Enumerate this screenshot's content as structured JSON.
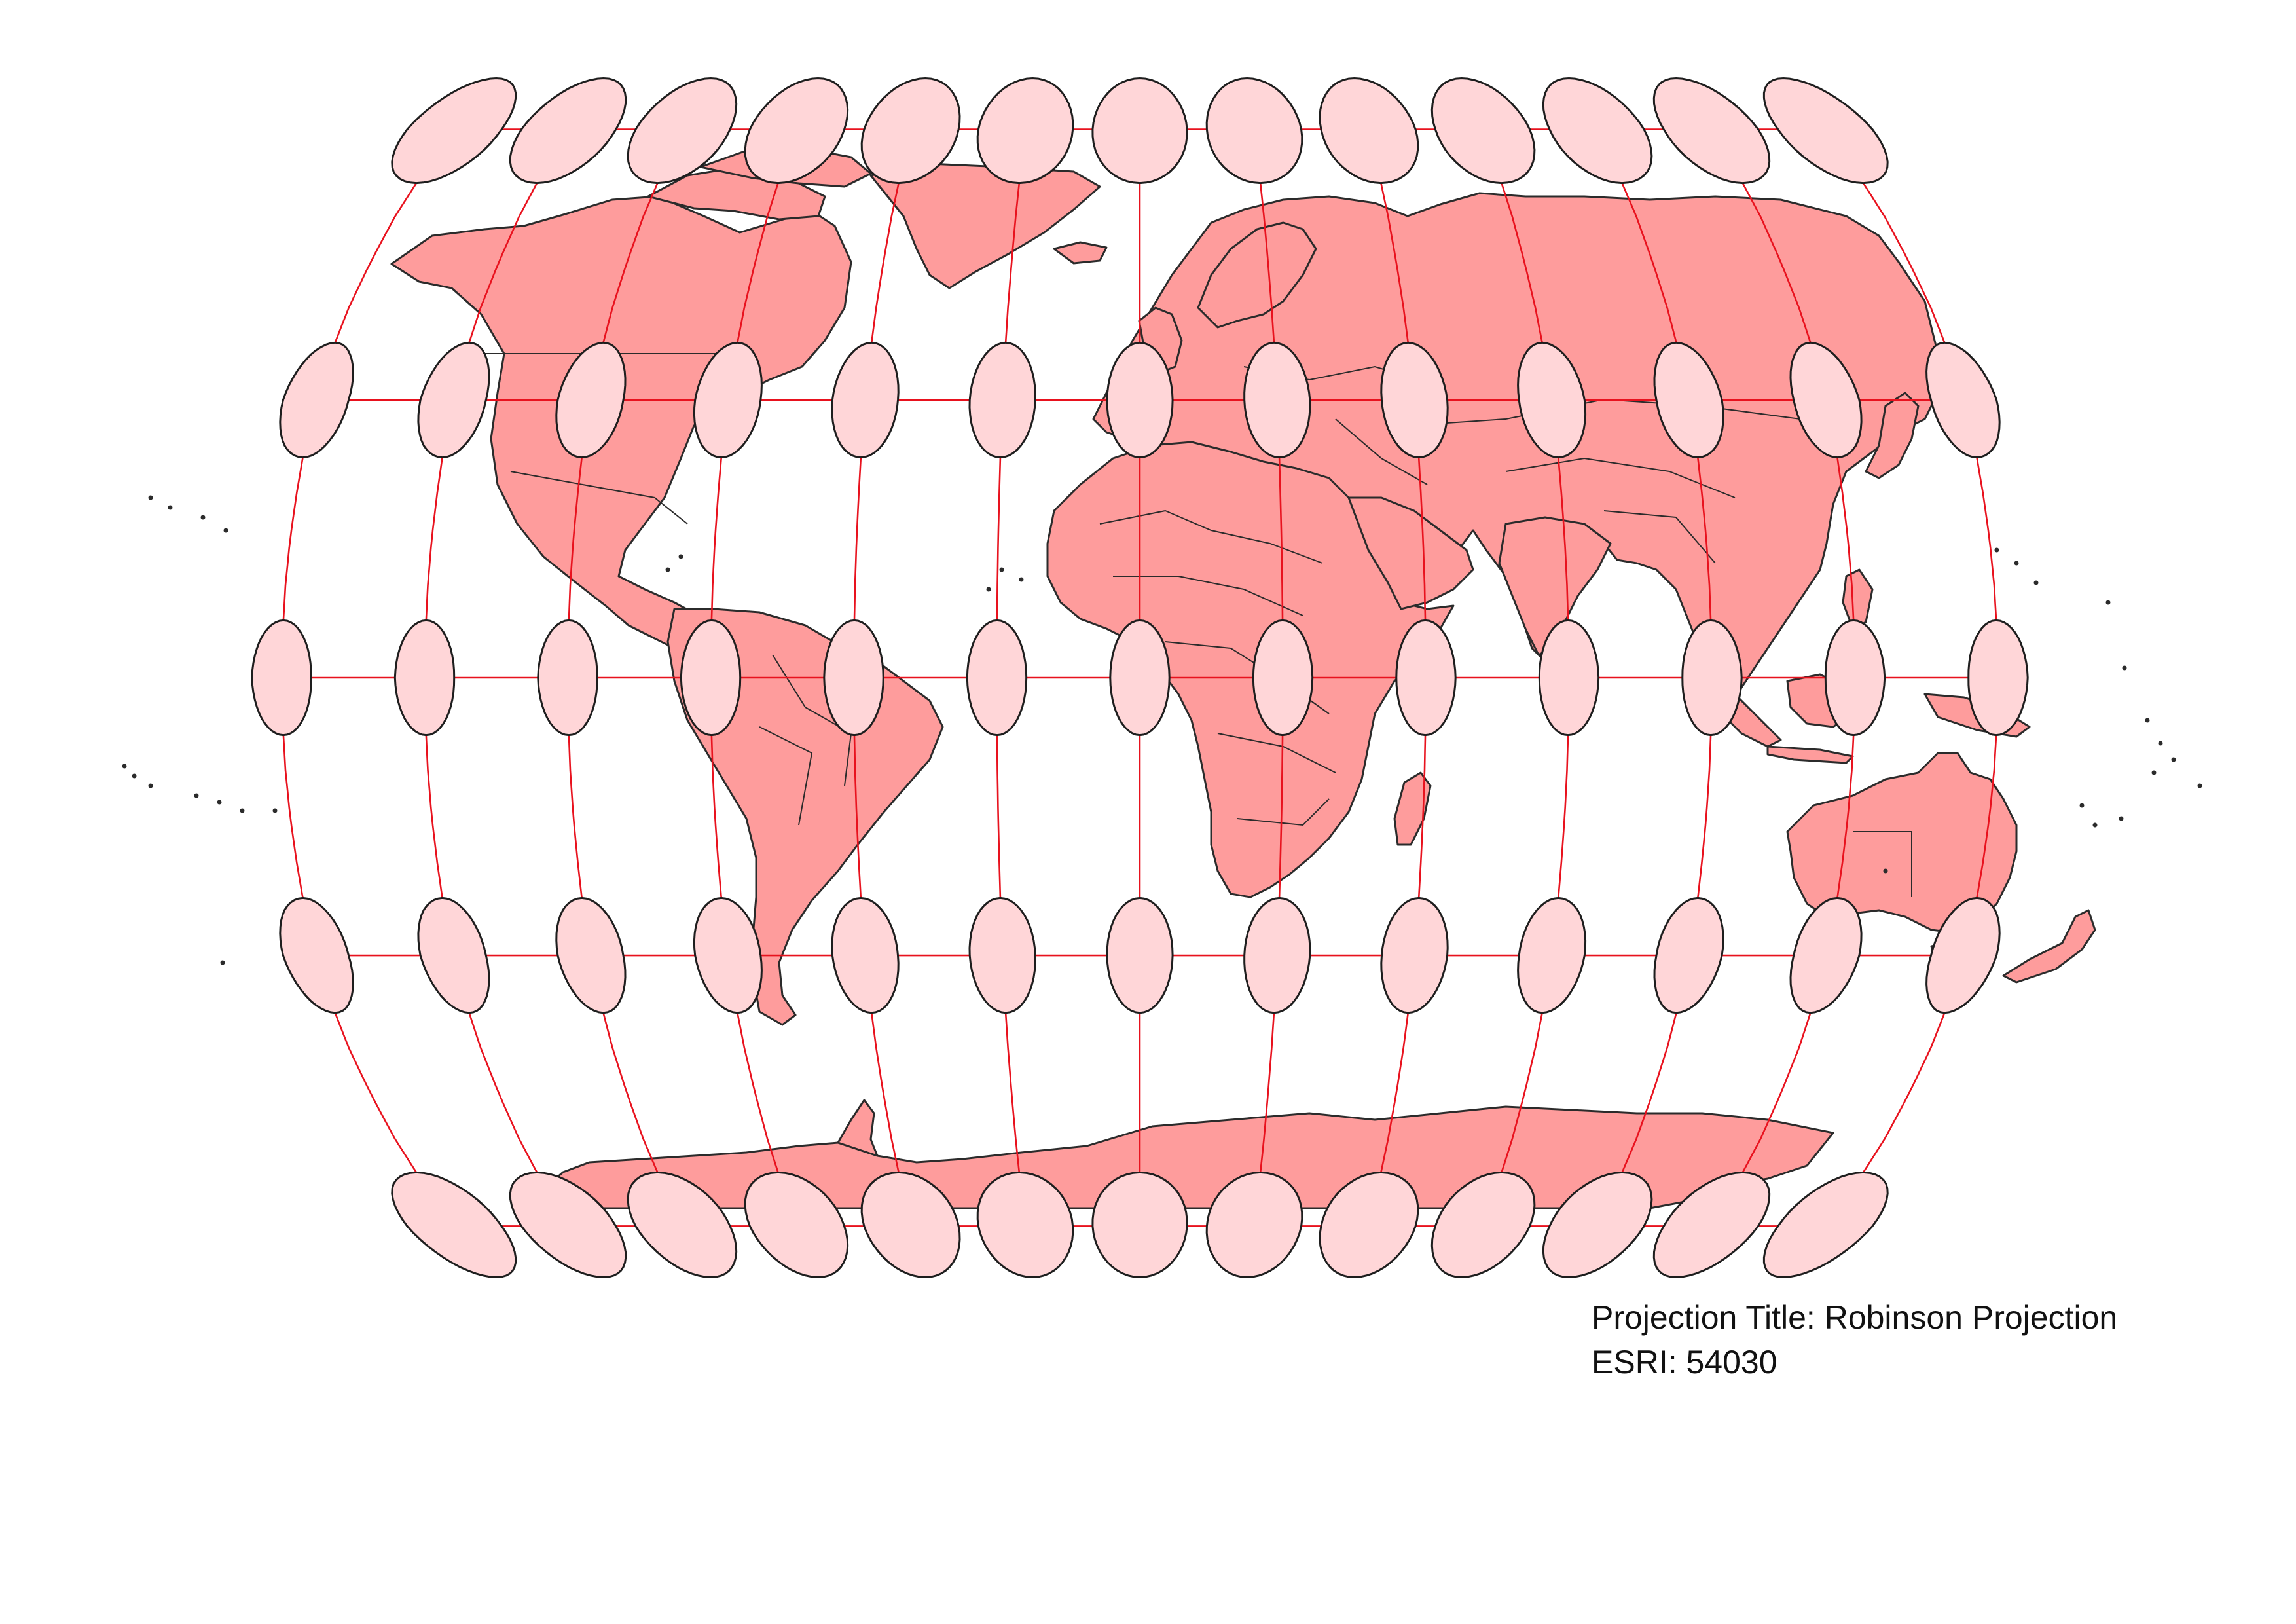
{
  "caption": {
    "projection_title": "Projection Title: Robinson Projection",
    "esri_code": "ESRI: 54030"
  },
  "map": {
    "projection": "Robinson",
    "graticule_step_degrees": 30,
    "meridians_deg": [
      -180,
      -150,
      -120,
      -90,
      -60,
      -30,
      0,
      30,
      60,
      90,
      120,
      150,
      180
    ],
    "parallels_deg": [
      -60,
      -30,
      0,
      30,
      60
    ],
    "tissot_indicatrix_centers_lon": [
      -180,
      -150,
      -120,
      -90,
      -60,
      -30,
      0,
      30,
      60,
      90,
      120,
      150,
      180
    ],
    "tissot_indicatrix_centers_lat": [
      -60,
      -30,
      0,
      30,
      60
    ],
    "colors": {
      "land": "#fe9c9c",
      "outline": "#2b2b2b",
      "graticule": "#e8121e",
      "tissot_fill": "#ffd6d8",
      "background": "#ffffff"
    }
  }
}
